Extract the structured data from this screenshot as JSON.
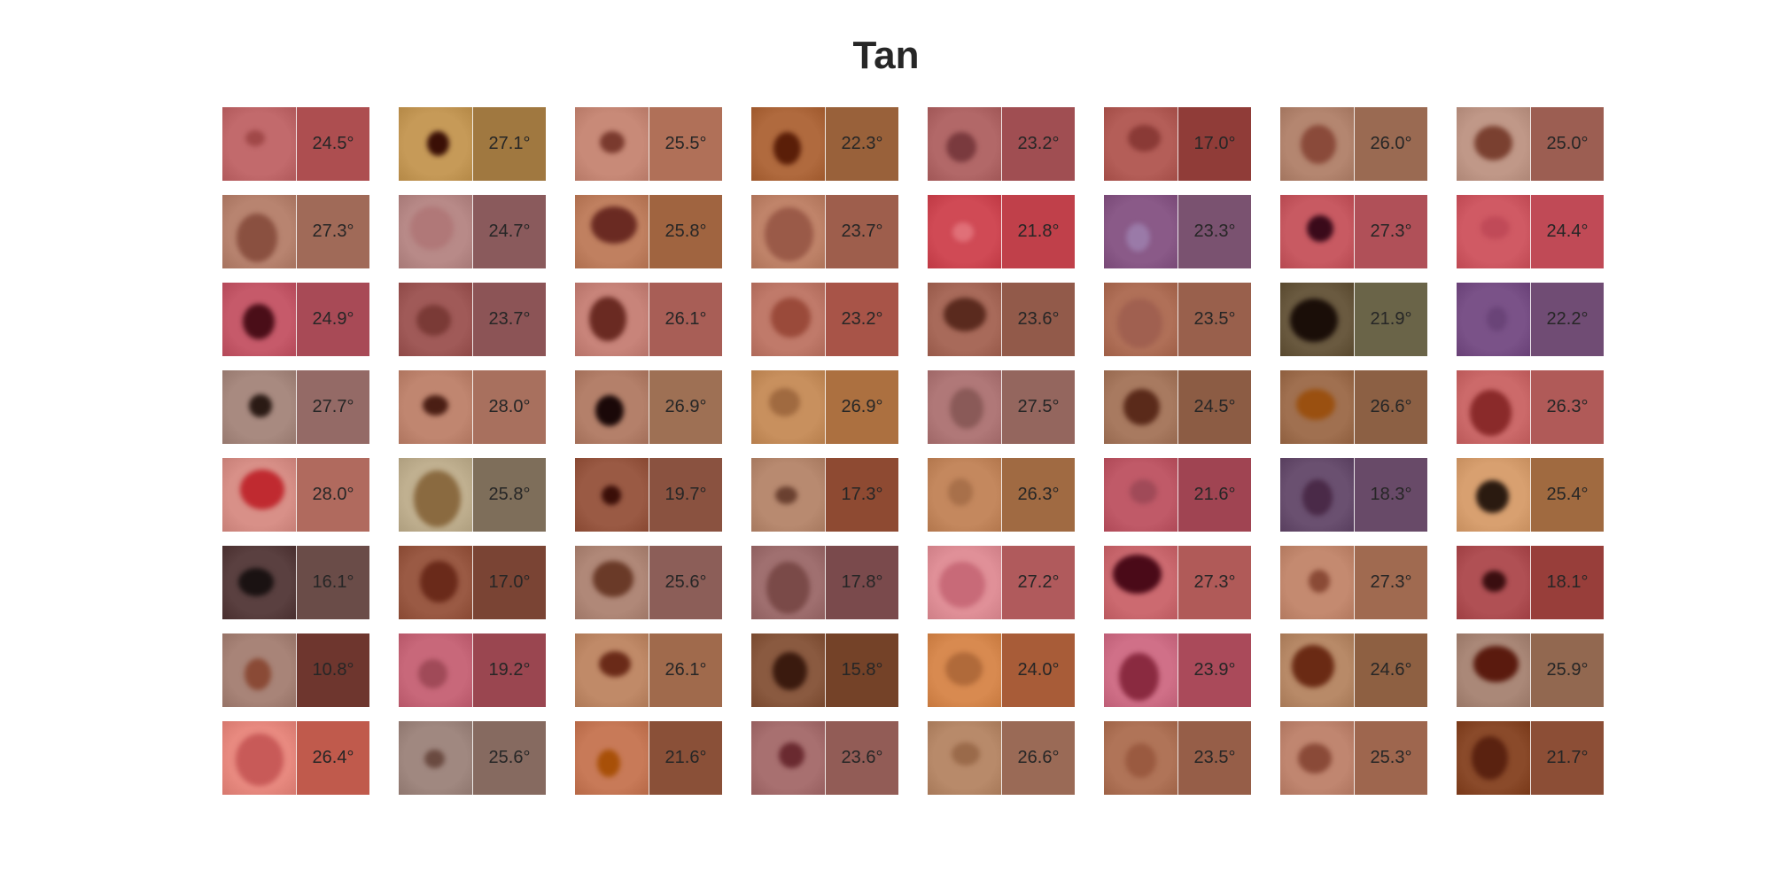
{
  "title": "Tan",
  "grid": {
    "columns": 8,
    "rows": 8,
    "cells": [
      {
        "angle": "24.5°",
        "skin": "#c26a6c",
        "lesion": "#a04848",
        "swatch": "#ad4e50"
      },
      {
        "angle": "27.1°",
        "skin": "#c69a58",
        "lesion": "#3a0f06",
        "swatch": "#a07840"
      },
      {
        "angle": "25.5°",
        "skin": "#c88a78",
        "lesion": "#7a3a2e",
        "swatch": "#b07058"
      },
      {
        "angle": "22.3°",
        "skin": "#b06a3e",
        "lesion": "#5a1e08",
        "swatch": "#99613a"
      },
      {
        "angle": "23.2°",
        "skin": "#b26868",
        "lesion": "#7a3a3e",
        "swatch": "#a04e52"
      },
      {
        "angle": "17.0°",
        "skin": "#b45e58",
        "lesion": "#8a3a36",
        "swatch": "#903c38"
      },
      {
        "angle": "26.0°",
        "skin": "#b48670",
        "lesion": "#8a4a3a",
        "swatch": "#9a6a52"
      },
      {
        "angle": "25.0°",
        "skin": "#c09888",
        "lesion": "#7a4030",
        "swatch": "#9c5e52"
      },
      {
        "angle": "27.3°",
        "skin": "#b88470",
        "lesion": "#8a5040",
        "swatch": "#a06a58"
      },
      {
        "angle": "24.7°",
        "skin": "#b88a88",
        "lesion": "#b07878",
        "swatch": "#8a5a5c"
      },
      {
        "angle": "25.8°",
        "skin": "#c08060",
        "lesion": "#6a2a22",
        "swatch": "#a06440"
      },
      {
        "angle": "23.7°",
        "skin": "#c0846a",
        "lesion": "#9a5a48",
        "swatch": "#9e5e4c"
      },
      {
        "angle": "21.8°",
        "skin": "#d04a55",
        "lesion": "#e07078",
        "swatch": "#c0404a"
      },
      {
        "angle": "23.3°",
        "skin": "#8a5a88",
        "lesion": "#9a7aa8",
        "swatch": "#7a5270"
      },
      {
        "angle": "27.3°",
        "skin": "#c85a62",
        "lesion": "#3a0a1a",
        "swatch": "#b05058"
      },
      {
        "angle": "24.4°",
        "skin": "#d05a64",
        "lesion": "#c04a58",
        "swatch": "#c04a56"
      },
      {
        "angle": "24.9°",
        "skin": "#c65a6a",
        "lesion": "#4a0e18",
        "swatch": "#a84a56"
      },
      {
        "angle": "23.7°",
        "skin": "#a05a58",
        "lesion": "#7a3a36",
        "swatch": "#8c5456"
      },
      {
        "angle": "26.1°",
        "skin": "#c8847a",
        "lesion": "#6a2a22",
        "swatch": "#a85e56"
      },
      {
        "angle": "23.2°",
        "skin": "#c07a6a",
        "lesion": "#9a4a3a",
        "swatch": "#a85448"
      },
      {
        "angle": "23.6°",
        "skin": "#a86a5a",
        "lesion": "#5a2a1e",
        "swatch": "#925a4a"
      },
      {
        "angle": "23.5°",
        "skin": "#b07058",
        "lesion": "#a06050",
        "swatch": "#99604c"
      },
      {
        "angle": "21.9°",
        "skin": "#6a5a40",
        "lesion": "#1a0e08",
        "swatch": "#6a6448"
      },
      {
        "angle": "22.2°",
        "skin": "#7a5288",
        "lesion": "#6a4478",
        "swatch": "#704c74"
      },
      {
        "angle": "27.7°",
        "skin": "#a88a80",
        "lesion": "#2a1a14",
        "swatch": "#946a66"
      },
      {
        "angle": "28.0°",
        "skin": "#c08670",
        "lesion": "#4a1e14",
        "swatch": "#a8705e"
      },
      {
        "angle": "26.9°",
        "skin": "#b4806a",
        "lesion": "#1a0808",
        "swatch": "#9e7054"
      },
      {
        "angle": "26.9°",
        "skin": "#c8905e",
        "lesion": "#a06a40",
        "swatch": "#ac7040"
      },
      {
        "angle": "27.5°",
        "skin": "#b07878",
        "lesion": "#8a5a58",
        "swatch": "#94665e"
      },
      {
        "angle": "24.5°",
        "skin": "#a87a60",
        "lesion": "#5a2a1a",
        "swatch": "#8c5c44"
      },
      {
        "angle": "26.6°",
        "skin": "#a07050",
        "lesion": "#9a5010",
        "swatch": "#8c6044"
      },
      {
        "angle": "26.3°",
        "skin": "#cc6a6a",
        "lesion": "#8a2a2a",
        "swatch": "#b05a58"
      },
      {
        "angle": "28.0°",
        "skin": "#d89088",
        "lesion": "#c02a30",
        "swatch": "#b06a5e"
      },
      {
        "angle": "25.8°",
        "skin": "#c0b090",
        "lesion": "#8a6a40",
        "swatch": "#7e6e5a"
      },
      {
        "angle": "19.7°",
        "skin": "#9a5a44",
        "lesion": "#3a0e08",
        "swatch": "#8a5240"
      },
      {
        "angle": "17.3°",
        "skin": "#b88a70",
        "lesion": "#6a4030",
        "swatch": "#8e4a32"
      },
      {
        "angle": "26.3°",
        "skin": "#c4885e",
        "lesion": "#a8704a",
        "swatch": "#a06a42"
      },
      {
        "angle": "21.6°",
        "skin": "#c05a68",
        "lesion": "#a04a58",
        "swatch": "#a04452"
      },
      {
        "angle": "18.3°",
        "skin": "#6a5070",
        "lesion": "#4a2a48",
        "swatch": "#684a68"
      },
      {
        "angle": "25.4°",
        "skin": "#d8a070",
        "lesion": "#2a1a10",
        "swatch": "#a06a40"
      },
      {
        "angle": "16.1°",
        "skin": "#5a4040",
        "lesion": "#1a1212",
        "swatch": "#6a4c48"
      },
      {
        "angle": "17.0°",
        "skin": "#9a5a44",
        "lesion": "#6a2a1a",
        "swatch": "#7a4434"
      },
      {
        "angle": "25.6°",
        "skin": "#b08878",
        "lesion": "#6a3a28",
        "swatch": "#8c5e58"
      },
      {
        "angle": "17.8°",
        "skin": "#a07070",
        "lesion": "#7a4a48",
        "swatch": "#7a4a4c"
      },
      {
        "angle": "27.2°",
        "skin": "#e09098",
        "lesion": "#c86a78",
        "swatch": "#b05a5c"
      },
      {
        "angle": "27.3°",
        "skin": "#cc6a70",
        "lesion": "#4a0a18",
        "swatch": "#b05a58"
      },
      {
        "angle": "27.3°",
        "skin": "#c48a70",
        "lesion": "#8a4a36",
        "swatch": "#a06a50"
      },
      {
        "angle": "18.1°",
        "skin": "#b05054",
        "lesion": "#3a0e10",
        "swatch": "#983e3a"
      },
      {
        "angle": "10.8°",
        "skin": "#a88478",
        "lesion": "#8a4a36",
        "swatch": "#6e362e"
      },
      {
        "angle": "19.2°",
        "skin": "#c8687a",
        "lesion": "#a04a58",
        "swatch": "#9a4650"
      },
      {
        "angle": "26.1°",
        "skin": "#c08a68",
        "lesion": "#6a2a18",
        "swatch": "#a06a4c"
      },
      {
        "angle": "15.8°",
        "skin": "#8a5a40",
        "lesion": "#3a1a0e",
        "swatch": "#744228"
      },
      {
        "angle": "24.0°",
        "skin": "#d88a50",
        "lesion": "#b06a3a",
        "swatch": "#a85c38"
      },
      {
        "angle": "23.9°",
        "skin": "#d07088",
        "lesion": "#8a2a40",
        "swatch": "#aa4a5a"
      },
      {
        "angle": "24.6°",
        "skin": "#b88a68",
        "lesion": "#6a2a14",
        "swatch": "#8e6042"
      },
      {
        "angle": "25.9°",
        "skin": "#aa8878",
        "lesion": "#5a1a0e",
        "swatch": "#926850"
      },
      {
        "angle": "26.4°",
        "skin": "#e88a80",
        "lesion": "#c85a58",
        "swatch": "#c05a4c"
      },
      {
        "angle": "25.6°",
        "skin": "#a08880",
        "lesion": "#6a4a40",
        "swatch": "#866a60"
      },
      {
        "angle": "21.6°",
        "skin": "#c87a58",
        "lesion": "#a85008",
        "swatch": "#8a5038"
      },
      {
        "angle": "23.6°",
        "skin": "#a87070",
        "lesion": "#6a2a30",
        "swatch": "#925c56"
      },
      {
        "angle": "26.6°",
        "skin": "#b88a6a",
        "lesion": "#9a6a4a",
        "swatch": "#9a6a56"
      },
      {
        "angle": "23.5°",
        "skin": "#b07458",
        "lesion": "#9a5a40",
        "swatch": "#965e48"
      },
      {
        "angle": "25.3°",
        "skin": "#c08670",
        "lesion": "#8a4a38",
        "swatch": "#9e664e"
      },
      {
        "angle": "21.7°",
        "skin": "#8a4a2a",
        "lesion": "#5a2210",
        "swatch": "#8c4e36"
      }
    ]
  }
}
